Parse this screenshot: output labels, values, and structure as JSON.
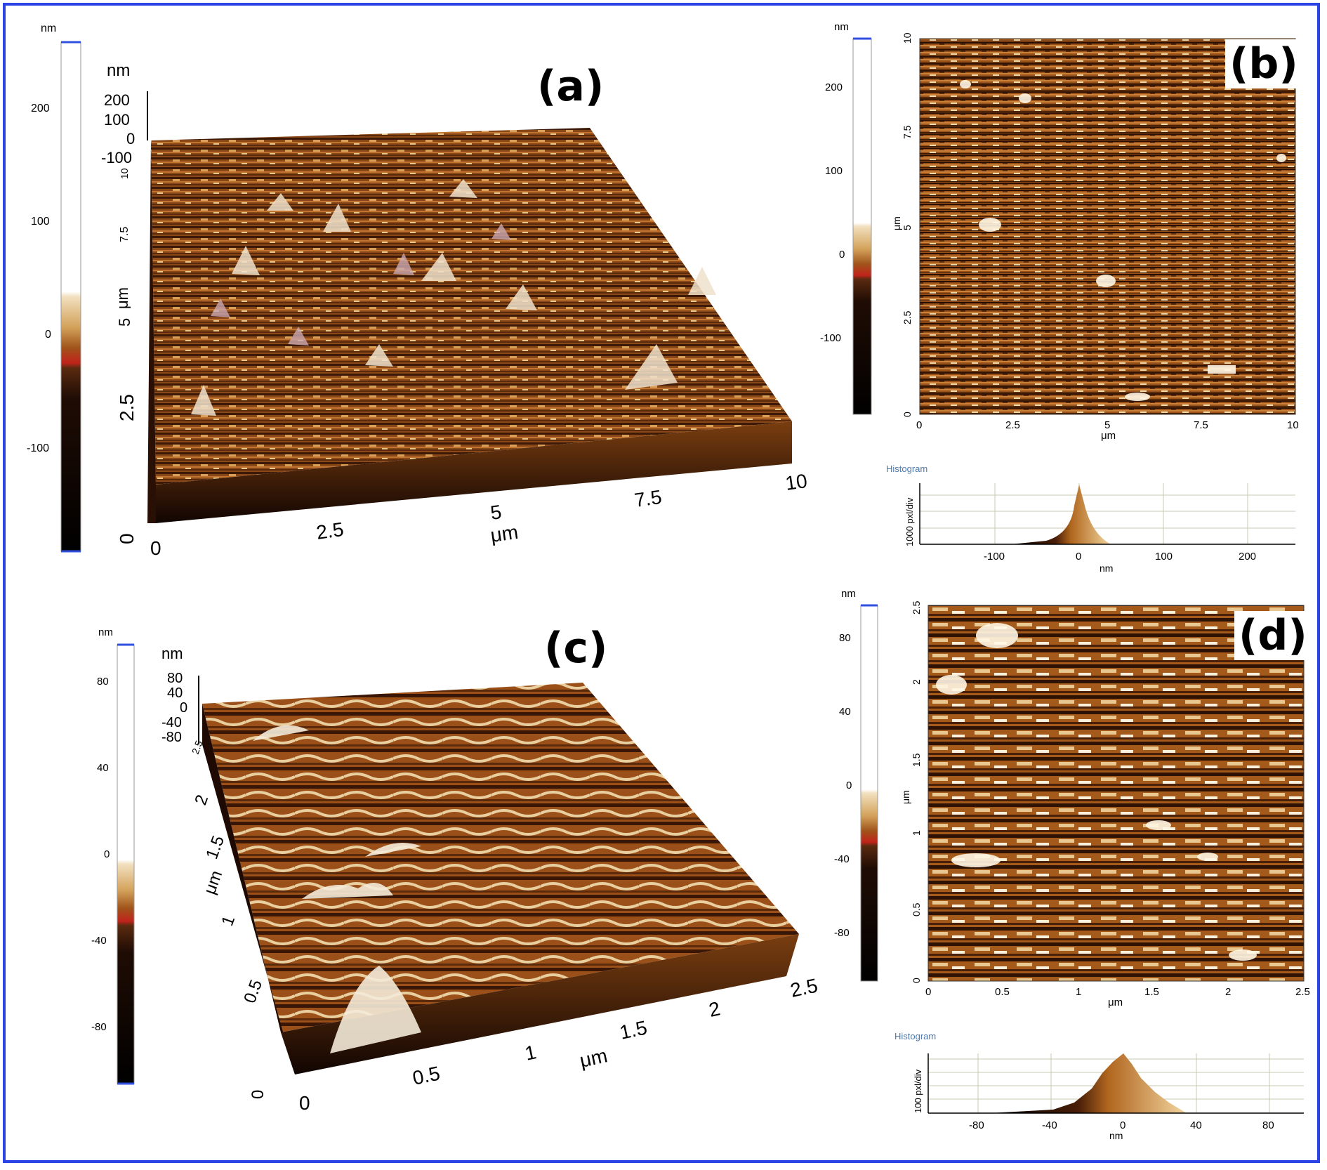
{
  "panels": {
    "a": {
      "label": "(a)",
      "colorbar": {
        "unit": "nm",
        "ticks": [
          "200",
          "100",
          "0",
          "-100"
        ]
      },
      "z_axis": {
        "unit": "nm",
        "ticks": [
          "200",
          "100",
          "0",
          "-100"
        ]
      },
      "y_axis": {
        "unit": "μm",
        "ticks": [
          "2.5",
          "5",
          "7.5",
          "10"
        ],
        "origin": "0"
      },
      "x_axis": {
        "unit": "μm",
        "ticks": [
          "0",
          "2.5",
          "5",
          "7.5",
          "10"
        ]
      }
    },
    "b": {
      "label": "(b)",
      "colorbar": {
        "unit": "nm",
        "ticks": [
          "200",
          "100",
          "0",
          "-100"
        ]
      },
      "x_axis": {
        "unit": "μm",
        "ticks": [
          "0",
          "2.5",
          "5",
          "7.5",
          "10"
        ]
      },
      "y_axis": {
        "unit": "μm",
        "ticks": [
          "0",
          "2.5",
          "5",
          "7.5",
          "10"
        ]
      },
      "histogram": {
        "title": "Histogram",
        "ylabel": "1000 pxl/div",
        "xlabel": "nm",
        "ticks": [
          "-100",
          "0",
          "100",
          "200"
        ]
      }
    },
    "c": {
      "label": "(c)",
      "colorbar": {
        "unit": "nm",
        "ticks": [
          "80",
          "40",
          "0",
          "-40",
          "-80"
        ]
      },
      "z_axis": {
        "unit": "nm",
        "ticks": [
          "80",
          "40",
          "0",
          "-40",
          "-80"
        ]
      },
      "y_axis": {
        "unit": "μm",
        "ticks": [
          "0.5",
          "1",
          "1.5",
          "2",
          "2.5"
        ],
        "origin": "0"
      },
      "x_axis": {
        "unit": "μm",
        "ticks": [
          "0",
          "0.5",
          "1",
          "1.5",
          "2",
          "2.5"
        ]
      }
    },
    "d": {
      "label": "(d)",
      "colorbar": {
        "unit": "nm",
        "ticks": [
          "80",
          "40",
          "0",
          "-40",
          "-80"
        ]
      },
      "x_axis": {
        "unit": "μm",
        "ticks": [
          "0",
          "0.5",
          "1",
          "1.5",
          "2",
          "2.5"
        ]
      },
      "y_axis": {
        "unit": "μm",
        "ticks": [
          "0",
          "0.5",
          "1",
          "1.5",
          "2",
          "2.5"
        ]
      },
      "histogram": {
        "title": "Histogram",
        "ylabel": "100 pxl/div",
        "xlabel": "nm",
        "ticks": [
          "-80",
          "-40",
          "0",
          "40",
          "80"
        ]
      }
    }
  },
  "colors": {
    "frame": "#2a44e6",
    "colorbar_top": "#ffffff",
    "colorbar_mid": "#c58a3e",
    "colorbar_bottom": "#000000",
    "afm_dark": "#3a1a06",
    "afm_mid": "#a9561c",
    "afm_light": "#f3e0b8",
    "histogram_title": "#4a78b0"
  }
}
